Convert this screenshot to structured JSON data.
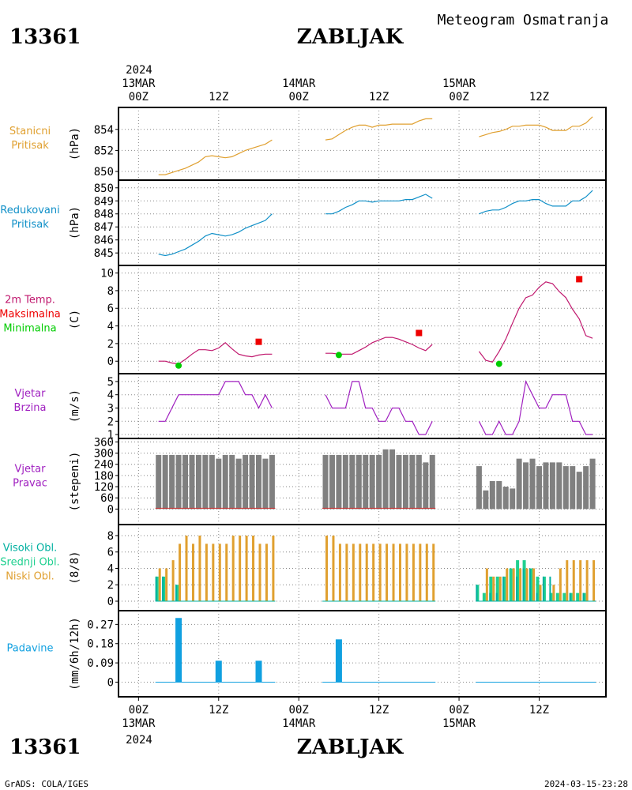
{
  "header": {
    "station_id": "13361",
    "station_name": "ZABLJAK",
    "subtitle": "Meteogram Osmatranja"
  },
  "footer": {
    "left": "GrADS: COLA/IGES",
    "right": "2024-03-15-23:28"
  },
  "colors": {
    "pressure": "#e0a030",
    "reduced_pressure": "#1090c8",
    "temperature": "#c0186e",
    "tmax": "#ee0000",
    "tmin": "#00cc00",
    "wind": "#a020c0",
    "wind_dir_bar": "#808080",
    "cloud_high": "#00b0a0",
    "cloud_mid": "#20d090",
    "cloud_low": "#e0a030",
    "precip": "#10a0e0",
    "grid": "#888888"
  },
  "x_axis": {
    "top_year": "2024",
    "bottom_year": "2024",
    "ticks": [
      {
        "t": 0,
        "label": "00Z",
        "date": "13MAR"
      },
      {
        "t": 12,
        "label": "12Z",
        "date": ""
      },
      {
        "t": 24,
        "label": "00Z",
        "date": "14MAR"
      },
      {
        "t": 36,
        "label": "12Z",
        "date": ""
      },
      {
        "t": 48,
        "label": "00Z",
        "date": "15MAR"
      },
      {
        "t": 60,
        "label": "12Z",
        "date": ""
      }
    ],
    "range_hours": [
      -3,
      70
    ]
  },
  "chart_data": [
    {
      "type": "line",
      "panel": "pressure",
      "side_label": [
        "Stanicni",
        "Pritisak"
      ],
      "unit": "(hPa)",
      "ylim": [
        849.8,
        855.6
      ],
      "yticks": [
        850,
        852,
        854
      ],
      "series": [
        {
          "x": [
            3,
            4,
            5,
            6,
            7,
            8,
            9,
            10,
            11,
            12,
            13,
            14,
            15,
            16,
            17,
            18,
            19,
            20
          ],
          "y": [
            849.7,
            849.7,
            849.9,
            850.1,
            850.3,
            850.6,
            850.9,
            851.4,
            851.5,
            851.4,
            851.3,
            851.4,
            851.7,
            852.0,
            852.2,
            852.4,
            852.6,
            853.0
          ]
        },
        {
          "x": [
            28,
            29,
            30,
            31,
            32,
            33,
            34,
            35,
            36,
            37,
            38,
            39,
            40,
            41,
            42,
            43,
            44
          ],
          "y": [
            853.0,
            853.1,
            853.5,
            853.9,
            854.2,
            854.4,
            854.4,
            854.2,
            854.4,
            854.4,
            854.5,
            854.5,
            854.5,
            854.5,
            854.8,
            855.0,
            855.0
          ]
        },
        {
          "x": [
            51,
            52,
            53,
            54,
            55,
            56,
            57,
            58,
            59,
            60,
            61,
            62,
            63,
            64,
            65,
            66,
            67,
            68
          ],
          "y": [
            853.3,
            853.5,
            853.7,
            853.8,
            854.0,
            854.3,
            854.3,
            854.4,
            854.4,
            854.4,
            854.2,
            853.9,
            853.9,
            853.9,
            854.3,
            854.3,
            854.6,
            855.2
          ]
        }
      ]
    },
    {
      "type": "line",
      "panel": "reduced_pressure",
      "side_label": [
        "Redukovani",
        "Pritisak"
      ],
      "unit": "(hPa)",
      "ylim": [
        844.5,
        850.2
      ],
      "yticks": [
        845,
        846,
        847,
        848,
        849,
        850
      ],
      "series": [
        {
          "x": [
            3,
            4,
            5,
            6,
            7,
            8,
            9,
            10,
            11,
            12,
            13,
            14,
            15,
            16,
            17,
            18,
            19,
            20
          ],
          "y": [
            844.9,
            844.8,
            844.9,
            845.1,
            845.3,
            845.6,
            845.9,
            846.3,
            846.5,
            846.4,
            846.3,
            846.4,
            846.6,
            846.9,
            847.1,
            847.3,
            847.5,
            848.0
          ]
        },
        {
          "x": [
            28,
            29,
            30,
            31,
            32,
            33,
            34,
            35,
            36,
            37,
            38,
            39,
            40,
            41,
            42,
            43,
            44
          ],
          "y": [
            848.0,
            848.0,
            848.2,
            848.5,
            848.7,
            849.0,
            849.0,
            848.9,
            849.0,
            849.0,
            849.0,
            849.0,
            849.1,
            849.1,
            849.3,
            849.5,
            849.2
          ]
        },
        {
          "x": [
            51,
            52,
            53,
            54,
            55,
            56,
            57,
            58,
            59,
            60,
            61,
            62,
            63,
            64,
            65,
            66,
            67,
            68
          ],
          "y": [
            848.0,
            848.2,
            848.3,
            848.3,
            848.5,
            848.8,
            849.0,
            849.0,
            849.1,
            849.1,
            848.8,
            848.6,
            848.6,
            848.6,
            849.0,
            849.0,
            849.3,
            849.8
          ]
        }
      ]
    },
    {
      "type": "line",
      "panel": "temperature",
      "side_label": [
        "2m Temp.",
        "Maksimalna",
        "Minimalna"
      ],
      "unit": "(C)",
      "ylim": [
        -0.8,
        10
      ],
      "yticks": [
        0,
        2,
        4,
        6,
        8,
        10
      ],
      "series": [
        {
          "name": "2m Temp.",
          "x": [
            3,
            4,
            5,
            6,
            7,
            8,
            9,
            10,
            11,
            12,
            13,
            14,
            15,
            16,
            17,
            18,
            19,
            20
          ],
          "y": [
            0.0,
            0.0,
            -0.2,
            -0.3,
            0.2,
            0.8,
            1.3,
            1.3,
            1.2,
            1.5,
            2.1,
            1.4,
            0.8,
            0.6,
            0.5,
            0.7,
            0.8,
            0.8
          ]
        },
        {
          "name": "2m Temp.",
          "x": [
            28,
            29,
            30,
            31,
            32,
            33,
            34,
            35,
            36,
            37,
            38,
            39,
            40,
            41,
            42,
            43,
            44
          ],
          "y": [
            0.9,
            0.9,
            0.8,
            0.8,
            0.8,
            1.2,
            1.6,
            2.1,
            2.4,
            2.7,
            2.7,
            2.5,
            2.2,
            1.9,
            1.5,
            1.2,
            1.9
          ]
        },
        {
          "name": "2m Temp.",
          "x": [
            51,
            52,
            53,
            54,
            55,
            56,
            57,
            58,
            59,
            60,
            61,
            62,
            63,
            64,
            65,
            66,
            67,
            68
          ],
          "y": [
            1.1,
            0.1,
            -0.1,
            1.1,
            2.5,
            4.3,
            6.0,
            7.2,
            7.5,
            8.4,
            9.0,
            8.8,
            7.9,
            7.2,
            5.9,
            4.8,
            2.9,
            2.6
          ]
        }
      ],
      "tmax": {
        "name": "Maksimalna",
        "x": [
          18,
          42,
          66
        ],
        "y": [
          2.2,
          3.2,
          9.3
        ]
      },
      "tmin": {
        "name": "Minimalna",
        "x": [
          6,
          30,
          54
        ],
        "y": [
          -0.5,
          0.7,
          -0.3
        ]
      }
    },
    {
      "type": "line",
      "panel": "wind_speed",
      "side_label": [
        "Vjetar",
        "Brzina"
      ],
      "unit": "(m/s)",
      "ylim": [
        0.9,
        5.2
      ],
      "yticks": [
        1,
        2,
        3,
        4,
        5
      ],
      "series": [
        {
          "x": [
            3,
            4,
            5,
            6,
            7,
            8,
            9,
            10,
            11,
            12,
            13,
            14,
            15,
            16,
            17,
            18,
            19,
            20
          ],
          "y": [
            2,
            2,
            3,
            4,
            4,
            4,
            4,
            4,
            4,
            4,
            5,
            5,
            5,
            4,
            4,
            3,
            4,
            3
          ]
        },
        {
          "x": [
            28,
            29,
            30,
            31,
            32,
            33,
            34,
            35,
            36,
            37,
            38,
            39,
            40,
            41,
            42,
            43,
            44
          ],
          "y": [
            4,
            3,
            3,
            3,
            5,
            5,
            3,
            3,
            2,
            2,
            3,
            3,
            2,
            2,
            1,
            1,
            2
          ]
        },
        {
          "x": [
            51,
            52,
            53,
            54,
            55,
            56,
            57,
            58,
            59,
            60,
            61,
            62,
            63,
            64,
            65,
            66,
            67,
            68
          ],
          "y": [
            2,
            1,
            1,
            2,
            1,
            1,
            2,
            5,
            4,
            3,
            3,
            4,
            4,
            4,
            2,
            2,
            1,
            1
          ]
        }
      ]
    },
    {
      "type": "bar",
      "panel": "wind_direction",
      "side_label": [
        "Vjetar",
        "Pravac"
      ],
      "unit": "(stepeni)",
      "ylim": [
        0,
        360
      ],
      "yticks": [
        0,
        60,
        120,
        180,
        240,
        300,
        360
      ],
      "x": [
        3,
        4,
        5,
        6,
        7,
        8,
        9,
        10,
        11,
        12,
        13,
        14,
        15,
        16,
        17,
        18,
        19,
        20,
        28,
        29,
        30,
        31,
        32,
        33,
        34,
        35,
        36,
        37,
        38,
        39,
        40,
        41,
        42,
        43,
        44,
        51,
        52,
        53,
        54,
        55,
        56,
        57,
        58,
        59,
        60,
        61,
        62,
        63,
        64,
        65,
        66,
        67,
        68
      ],
      "values": [
        290,
        290,
        290,
        290,
        290,
        290,
        290,
        290,
        290,
        270,
        290,
        290,
        270,
        290,
        290,
        290,
        270,
        290,
        290,
        290,
        290,
        290,
        290,
        290,
        290,
        290,
        290,
        320,
        320,
        290,
        290,
        290,
        290,
        250,
        290,
        230,
        100,
        150,
        150,
        120,
        110,
        270,
        250,
        270,
        230,
        250,
        250,
        250,
        230,
        230,
        200,
        230,
        270
      ]
    },
    {
      "type": "bar",
      "panel": "clouds",
      "side_label": [
        "Visoki Obl.",
        "Srednji Obl.",
        "Niski Obl."
      ],
      "unit": "(8/8)",
      "ylim": [
        0,
        8.4
      ],
      "yticks": [
        0,
        2,
        4,
        6,
        8
      ],
      "x": [
        3,
        4,
        5,
        6,
        7,
        8,
        9,
        10,
        11,
        12,
        13,
        14,
        15,
        16,
        17,
        18,
        19,
        20,
        28,
        29,
        30,
        31,
        32,
        33,
        34,
        35,
        36,
        37,
        38,
        39,
        40,
        41,
        42,
        43,
        44,
        51,
        52,
        53,
        54,
        55,
        56,
        57,
        58,
        59,
        60,
        61,
        62,
        63,
        64,
        65,
        66,
        67,
        68
      ],
      "series": [
        {
          "name": "Visoki Obl.",
          "values": [
            3,
            3,
            0,
            2,
            0,
            0,
            0,
            0,
            0,
            0,
            0,
            0,
            0,
            0,
            0,
            0,
            0,
            0,
            0,
            0,
            0,
            0,
            0,
            0,
            0,
            0,
            0,
            0,
            0,
            0,
            0,
            0,
            0,
            0,
            0,
            2,
            0,
            1,
            1,
            3,
            0,
            3,
            4,
            4,
            1,
            3,
            3,
            0,
            0,
            1,
            0,
            1,
            0
          ]
        },
        {
          "name": "Srednji Obl.",
          "values": [
            3,
            3,
            0,
            2,
            0,
            0,
            0,
            0,
            0,
            0,
            0,
            0,
            0,
            0,
            0,
            0,
            0,
            0,
            0,
            0,
            0,
            0,
            0,
            0,
            0,
            0,
            0,
            0,
            0,
            0,
            0,
            0,
            0,
            0,
            0,
            2,
            1,
            3,
            3,
            3,
            4,
            5,
            5,
            4,
            3,
            3,
            1,
            1,
            1,
            1,
            1,
            1,
            0
          ]
        },
        {
          "name": "Niski Obl.",
          "values": [
            4,
            4,
            5,
            7,
            8,
            7,
            8,
            7,
            7,
            7,
            7,
            8,
            8,
            8,
            8,
            7,
            7,
            8,
            8,
            8,
            7,
            7,
            7,
            7,
            7,
            7,
            7,
            7,
            7,
            7,
            7,
            7,
            7,
            7,
            7,
            0,
            4,
            3,
            3,
            4,
            4,
            4,
            4,
            4,
            2,
            0,
            2,
            4,
            5,
            5,
            5,
            5,
            5
          ]
        }
      ]
    },
    {
      "type": "bar",
      "panel": "precipitation",
      "side_label": [
        "Padavine"
      ],
      "unit": "(mm/6h/12h)",
      "ylim": [
        0,
        0.31
      ],
      "yticks": [
        0,
        0.09,
        0.18,
        0.27
      ],
      "ytick_labels": [
        "0",
        "0.09",
        "0.18",
        "0.27"
      ],
      "x": [
        6,
        12,
        18,
        30
      ],
      "values": [
        0.3,
        0.1,
        0.1,
        0.2
      ]
    }
  ]
}
